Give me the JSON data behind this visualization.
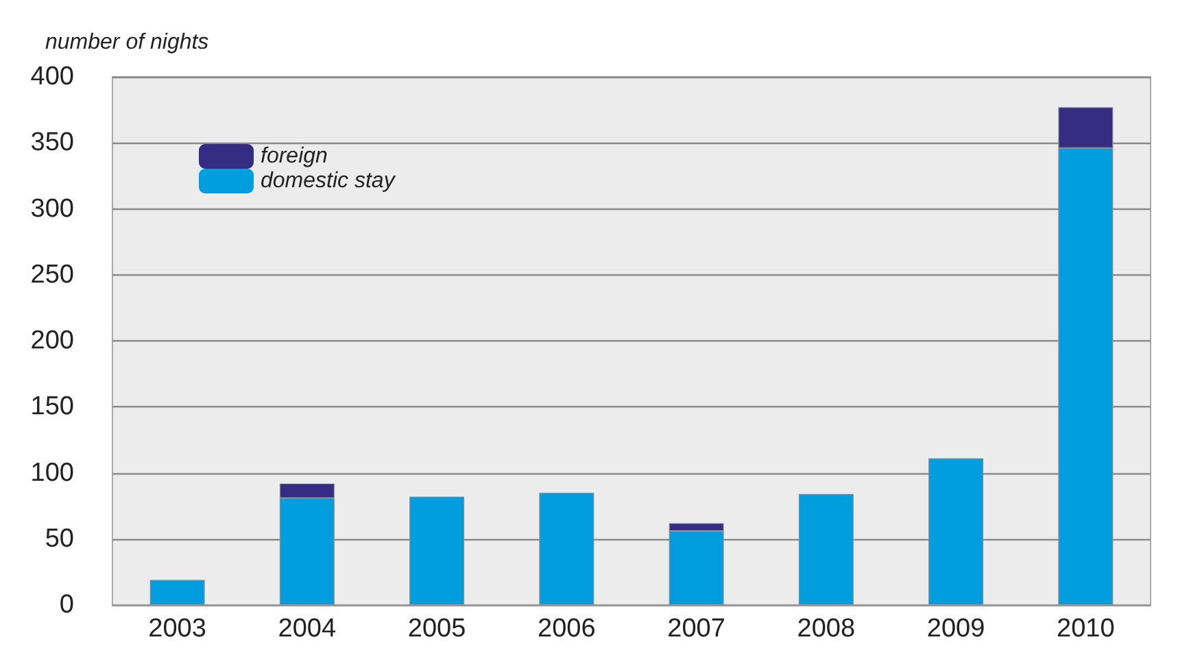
{
  "chart_data": {
    "type": "bar",
    "ylabel": "number of nights",
    "stacked": true,
    "categories": [
      "2003",
      "2004",
      "2005",
      "2006",
      "2007",
      "2008",
      "2009",
      "2010"
    ],
    "series": [
      {
        "name": "domestic stay",
        "color": "#009ddf",
        "values": [
          19,
          81,
          82,
          85,
          56,
          84,
          111,
          346
        ]
      },
      {
        "name": "foreign",
        "color": "#352d84",
        "values": [
          null,
          11,
          null,
          null,
          6,
          null,
          null,
          31
        ]
      }
    ],
    "ylim": [
      0,
      400
    ],
    "yticks": [
      0,
      50,
      100,
      150,
      200,
      250,
      300,
      350,
      400
    ],
    "grid": "y",
    "legend": "top left"
  }
}
